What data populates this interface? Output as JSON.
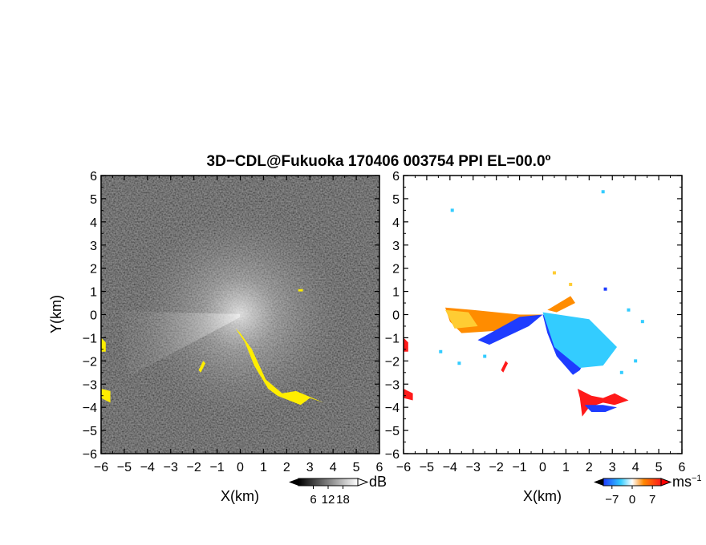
{
  "chart_data": [
    {
      "type": "heatmap",
      "title": "3D−CDL@Fukuoka 170406 003754 PPI EL=00.0º",
      "xlabel": "X(km)",
      "ylabel": "Y(km)",
      "xlim": [
        -6,
        6
      ],
      "ylim": [
        -6,
        6
      ],
      "x_ticks": [
        "−6",
        "−5",
        "−4",
        "−3",
        "−2",
        "−1",
        "0",
        "1",
        "2",
        "3",
        "4",
        "5",
        "6"
      ],
      "y_ticks": [
        "−6",
        "−5",
        "−4",
        "−3",
        "−2",
        "−1",
        "0",
        "1",
        "2",
        "3",
        "4",
        "5",
        "6"
      ],
      "colorbar": {
        "label": "dB",
        "ticks": [
          "6",
          "12",
          "18"
        ],
        "values": [
          6,
          12,
          18
        ],
        "range": [
          0,
          24
        ],
        "colors": [
          "#000000",
          "#ffffff"
        ]
      },
      "highlight_color": "#ffee00",
      "highlight_regions": [
        {
          "name": "south-east echo",
          "points": [
            [
              -0.2,
              -0.6
            ],
            [
              0.2,
              -1.2
            ],
            [
              0.6,
              -2.2
            ],
            [
              1.2,
              -3.2
            ],
            [
              1.6,
              -3.5
            ],
            [
              2.1,
              -3.7
            ],
            [
              2.6,
              -3.9
            ],
            [
              3.0,
              -3.6
            ],
            [
              3.6,
              -3.8
            ],
            [
              2.4,
              -3.3
            ],
            [
              1.8,
              -3.4
            ],
            [
              1.1,
              -2.8
            ],
            [
              0.5,
              -1.5
            ],
            [
              0.0,
              -0.8
            ]
          ]
        },
        {
          "name": "west edge echo A",
          "points": [
            [
              -6.0,
              -1.0
            ],
            [
              -5.8,
              -1.2
            ],
            [
              -5.8,
              -1.6
            ],
            [
              -6.0,
              -1.6
            ]
          ]
        },
        {
          "name": "west edge echo B",
          "points": [
            [
              -6.0,
              -3.2
            ],
            [
              -5.6,
              -3.3
            ],
            [
              -5.6,
              -3.8
            ],
            [
              -6.0,
              -3.6
            ]
          ]
        },
        {
          "name": "small echo",
          "points": [
            [
              -1.6,
              -2.0
            ],
            [
              -1.5,
              -2.1
            ],
            [
              -1.7,
              -2.5
            ],
            [
              -1.8,
              -2.4
            ]
          ]
        },
        {
          "name": "north echo",
          "points": [
            [
              2.5,
              1.1
            ],
            [
              2.7,
              1.1
            ],
            [
              2.7,
              1.0
            ],
            [
              2.5,
              1.0
            ]
          ]
        }
      ]
    },
    {
      "type": "heatmap",
      "title": "",
      "xlabel": "X(km)",
      "ylabel": "",
      "xlim": [
        -6,
        6
      ],
      "ylim": [
        -6,
        6
      ],
      "x_ticks": [
        "−6",
        "−5",
        "−4",
        "−3",
        "−2",
        "−1",
        "0",
        "1",
        "2",
        "3",
        "4",
        "5",
        "6"
      ],
      "colorbar": {
        "label": "ms−1",
        "ticks": [
          "−7",
          "0",
          "7"
        ],
        "values": [
          -7,
          0,
          7
        ],
        "range": [
          -10,
          10
        ],
        "colors": [
          "#0044ff",
          "#33ccff",
          "#ffffff",
          "#ff8800",
          "#ff0000"
        ]
      },
      "regions": [
        {
          "name": "approaching sector (blue)",
          "color": "#1e3cff",
          "points": [
            [
              0.0,
              0.0
            ],
            [
              1.4,
              -0.4
            ],
            [
              2.2,
              -1.2
            ],
            [
              1.6,
              -2.4
            ],
            [
              1.3,
              -2.6
            ],
            [
              0.6,
              -1.8
            ],
            [
              0.2,
              -0.8
            ]
          ]
        },
        {
          "name": "approaching sector (cyan)",
          "color": "#33ccff",
          "points": [
            [
              0.0,
              0.1
            ],
            [
              2.0,
              -0.2
            ],
            [
              3.2,
              -1.4
            ],
            [
              2.6,
              -2.2
            ],
            [
              1.6,
              -2.3
            ],
            [
              0.5,
              -1.4
            ]
          ]
        },
        {
          "name": "receding sector west (orange)",
          "color": "#ff8c00",
          "points": [
            [
              -4.2,
              0.3
            ],
            [
              -3.0,
              0.2
            ],
            [
              -1.0,
              0.0
            ],
            [
              0.0,
              0.0
            ],
            [
              -0.5,
              -0.4
            ],
            [
              -2.0,
              -0.7
            ],
            [
              -3.5,
              -0.8
            ],
            [
              -4.0,
              -0.3
            ]
          ]
        },
        {
          "name": "receding sector west (yellow)",
          "color": "#ffcc33",
          "points": [
            [
              -4.2,
              0.2
            ],
            [
              -3.2,
              0.1
            ],
            [
              -2.8,
              -0.5
            ],
            [
              -3.8,
              -0.6
            ]
          ]
        },
        {
          "name": "approaching band west (blue)",
          "color": "#1e3cff",
          "points": [
            [
              -2.8,
              -1.1
            ],
            [
              -1.0,
              -0.1
            ],
            [
              0.0,
              0.0
            ],
            [
              -0.6,
              -0.5
            ],
            [
              -2.3,
              -1.3
            ]
          ]
        },
        {
          "name": "north-east receding (orange)",
          "color": "#ff8c00",
          "points": [
            [
              0.2,
              0.2
            ],
            [
              1.2,
              0.8
            ],
            [
              1.4,
              0.5
            ],
            [
              0.6,
              0.1
            ]
          ]
        },
        {
          "name": "south-east echo (red)",
          "color": "#ff1a1a",
          "points": [
            [
              1.5,
              -3.2
            ],
            [
              2.1,
              -3.5
            ],
            [
              2.6,
              -3.6
            ],
            [
              3.1,
              -3.4
            ],
            [
              3.7,
              -3.7
            ],
            [
              3.1,
              -3.9
            ],
            [
              2.6,
              -3.8
            ],
            [
              2.0,
              -4.0
            ],
            [
              1.7,
              -4.4
            ],
            [
              1.6,
              -3.6
            ]
          ]
        },
        {
          "name": "south-east echo (blue)",
          "color": "#1e3cff",
          "points": [
            [
              1.8,
              -3.9
            ],
            [
              2.6,
              -3.9
            ],
            [
              3.2,
              -4.0
            ],
            [
              2.7,
              -4.2
            ],
            [
              2.1,
              -4.2
            ]
          ]
        },
        {
          "name": "west edge echo A (red)",
          "color": "#ff1a1a",
          "points": [
            [
              -6.0,
              -1.0
            ],
            [
              -5.8,
              -1.2
            ],
            [
              -5.8,
              -1.6
            ],
            [
              -6.0,
              -1.6
            ]
          ]
        },
        {
          "name": "west edge echo B (red)",
          "color": "#ff1a1a",
          "points": [
            [
              -6.0,
              -3.2
            ],
            [
              -5.6,
              -3.4
            ],
            [
              -5.6,
              -3.7
            ],
            [
              -6.0,
              -3.6
            ]
          ]
        },
        {
          "name": "small echo (red)",
          "color": "#ff1a1a",
          "points": [
            [
              -1.6,
              -2.0
            ],
            [
              -1.5,
              -2.1
            ],
            [
              -1.7,
              -2.5
            ],
            [
              -1.8,
              -2.4
            ]
          ]
        }
      ],
      "scatter_points": [
        {
          "x": -3.9,
          "y": 4.5,
          "color": "#33ccff"
        },
        {
          "x": 2.6,
          "y": 5.3,
          "color": "#33ccff"
        },
        {
          "x": 0.5,
          "y": 1.8,
          "color": "#ffcc33"
        },
        {
          "x": 2.7,
          "y": 1.1,
          "color": "#1e3cff"
        },
        {
          "x": 1.2,
          "y": 1.3,
          "color": "#ffcc33"
        },
        {
          "x": -4.4,
          "y": -1.6,
          "color": "#33ccff"
        },
        {
          "x": -3.6,
          "y": -2.1,
          "color": "#33ccff"
        },
        {
          "x": -2.5,
          "y": -1.8,
          "color": "#33ccff"
        },
        {
          "x": 3.4,
          "y": -2.5,
          "color": "#33ccff"
        },
        {
          "x": 4.0,
          "y": -2.0,
          "color": "#33ccff"
        },
        {
          "x": 3.7,
          "y": 0.2,
          "color": "#33ccff"
        },
        {
          "x": 4.3,
          "y": -0.3,
          "color": "#33ccff"
        }
      ]
    }
  ]
}
